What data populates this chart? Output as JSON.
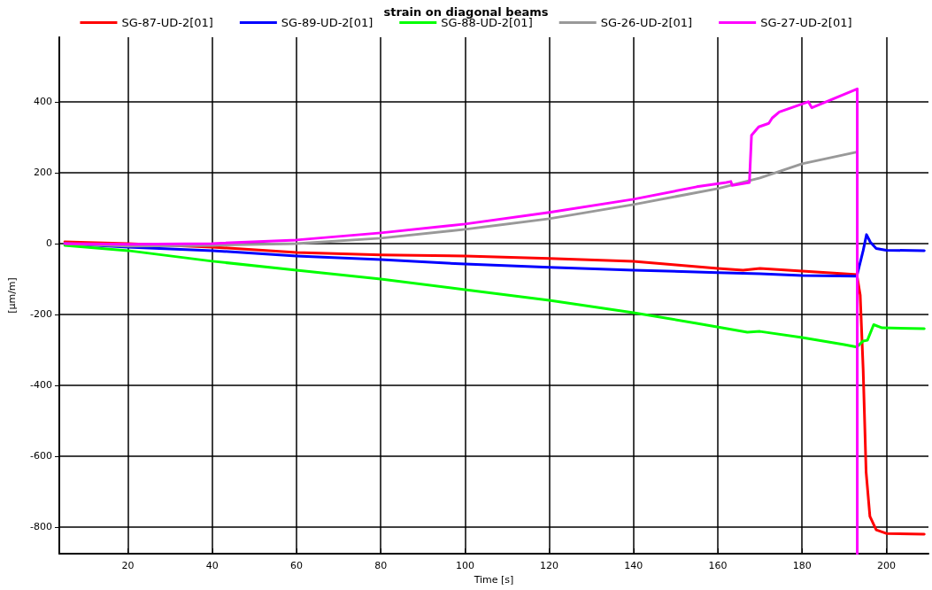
{
  "chart_data": {
    "type": "line",
    "title": "strain on diagonal beams",
    "xlabel": "Time [s]",
    "ylabel": "[µm/m]",
    "xlim": [
      3.7,
      210
    ],
    "xticks": [
      20,
      40,
      60,
      80,
      100,
      120,
      140,
      160,
      180,
      200
    ],
    "ylim": [
      -875,
      582
    ],
    "yticks": [
      -800,
      -600,
      -400,
      -200,
      0,
      200,
      400
    ],
    "grid": true,
    "legend": "top",
    "marker": "none",
    "line_style": "solid",
    "series": [
      {
        "name": "SG-87-UD-2[01]",
        "color": "#ff0000",
        "x": [
          5,
          20,
          40,
          60,
          80,
          100,
          120,
          140,
          150,
          160,
          166,
          170,
          180,
          190,
          193,
          193.8,
          194.5,
          195.2,
          196.1,
          197.6,
          200,
          209
        ],
        "values": [
          5,
          0,
          -10,
          -25,
          -32,
          -35,
          -42,
          -50,
          -60,
          -70,
          -75,
          -70,
          -78,
          -85,
          -88,
          -145,
          -355,
          -645,
          -770,
          -808,
          -818,
          -820
        ]
      },
      {
        "name": "SG-89-UD-2[01]",
        "color": "#0000ff",
        "x": [
          5,
          20,
          40,
          60,
          80,
          100,
          120,
          140,
          160,
          170,
          180,
          193,
          194.5,
          195.3,
          196.2,
          197.6,
          200,
          209
        ],
        "values": [
          0,
          -10,
          -20,
          -35,
          -45,
          -58,
          -67,
          -75,
          -82,
          -85,
          -90,
          -92,
          -20,
          25,
          4,
          -14,
          -19,
          -20
        ]
      },
      {
        "name": "SG-88-UD-2[01]",
        "color": "#00ff00",
        "x": [
          5,
          20,
          40,
          60,
          80,
          100,
          120,
          140,
          155,
          167,
          170,
          180,
          190,
          193,
          194.5,
          195.5,
          197,
          199,
          209
        ],
        "values": [
          -5,
          -20,
          -50,
          -75,
          -100,
          -130,
          -160,
          -195,
          -225,
          -250,
          -248,
          -265,
          -285,
          -292,
          -275,
          -273,
          -229,
          -238,
          -240
        ]
      },
      {
        "name": "SG-26-UD-2[01]",
        "color": "#999999",
        "x": [
          5,
          20,
          40,
          60,
          80,
          100,
          120,
          140,
          160,
          170,
          180,
          193
        ],
        "values": [
          0,
          -7,
          -5,
          0,
          15,
          40,
          70,
          110,
          155,
          185,
          225,
          258
        ]
      },
      {
        "name": "SG-27-UD-2[01]",
        "color": "#ff00ff",
        "x": [
          5,
          20,
          40,
          60,
          80,
          100,
          120,
          140,
          155,
          162,
          163.1,
          163.4,
          167.5,
          168,
          169.7,
          172.1,
          172.9,
          174.6,
          181.5,
          182.3,
          193.1,
          193.1
        ],
        "values": [
          0,
          -2,
          0,
          10,
          30,
          55,
          88,
          125,
          160,
          172,
          175,
          164,
          172,
          305,
          329,
          339,
          354,
          371,
          400,
          383,
          436,
          -875
        ]
      }
    ]
  }
}
